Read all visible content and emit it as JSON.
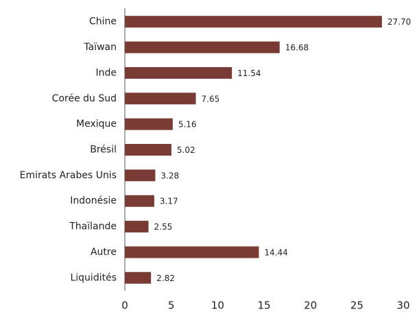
{
  "chart_data": {
    "type": "barh",
    "categories": [
      "Chine",
      "Taïwan",
      "Inde",
      "Corée du Sud",
      "Mexique",
      "Brésil",
      "Emirats Arabes Unis",
      "Indonésie",
      "Thaïlande",
      "Autre",
      "Liquidités"
    ],
    "values": [
      27.7,
      16.68,
      11.54,
      7.65,
      5.16,
      5.02,
      3.28,
      3.17,
      2.55,
      14.44,
      2.82
    ],
    "value_labels": [
      "27.70",
      "16.68",
      "11.54",
      "7.65",
      "5.16",
      "5.02",
      "3.28",
      "3.17",
      "2.55",
      "14.44",
      "2.82"
    ],
    "color": "#7b3b35",
    "xlim": [
      0,
      30
    ],
    "xticks": [
      0,
      5,
      10,
      15,
      20,
      25,
      30
    ],
    "grid": false
  }
}
